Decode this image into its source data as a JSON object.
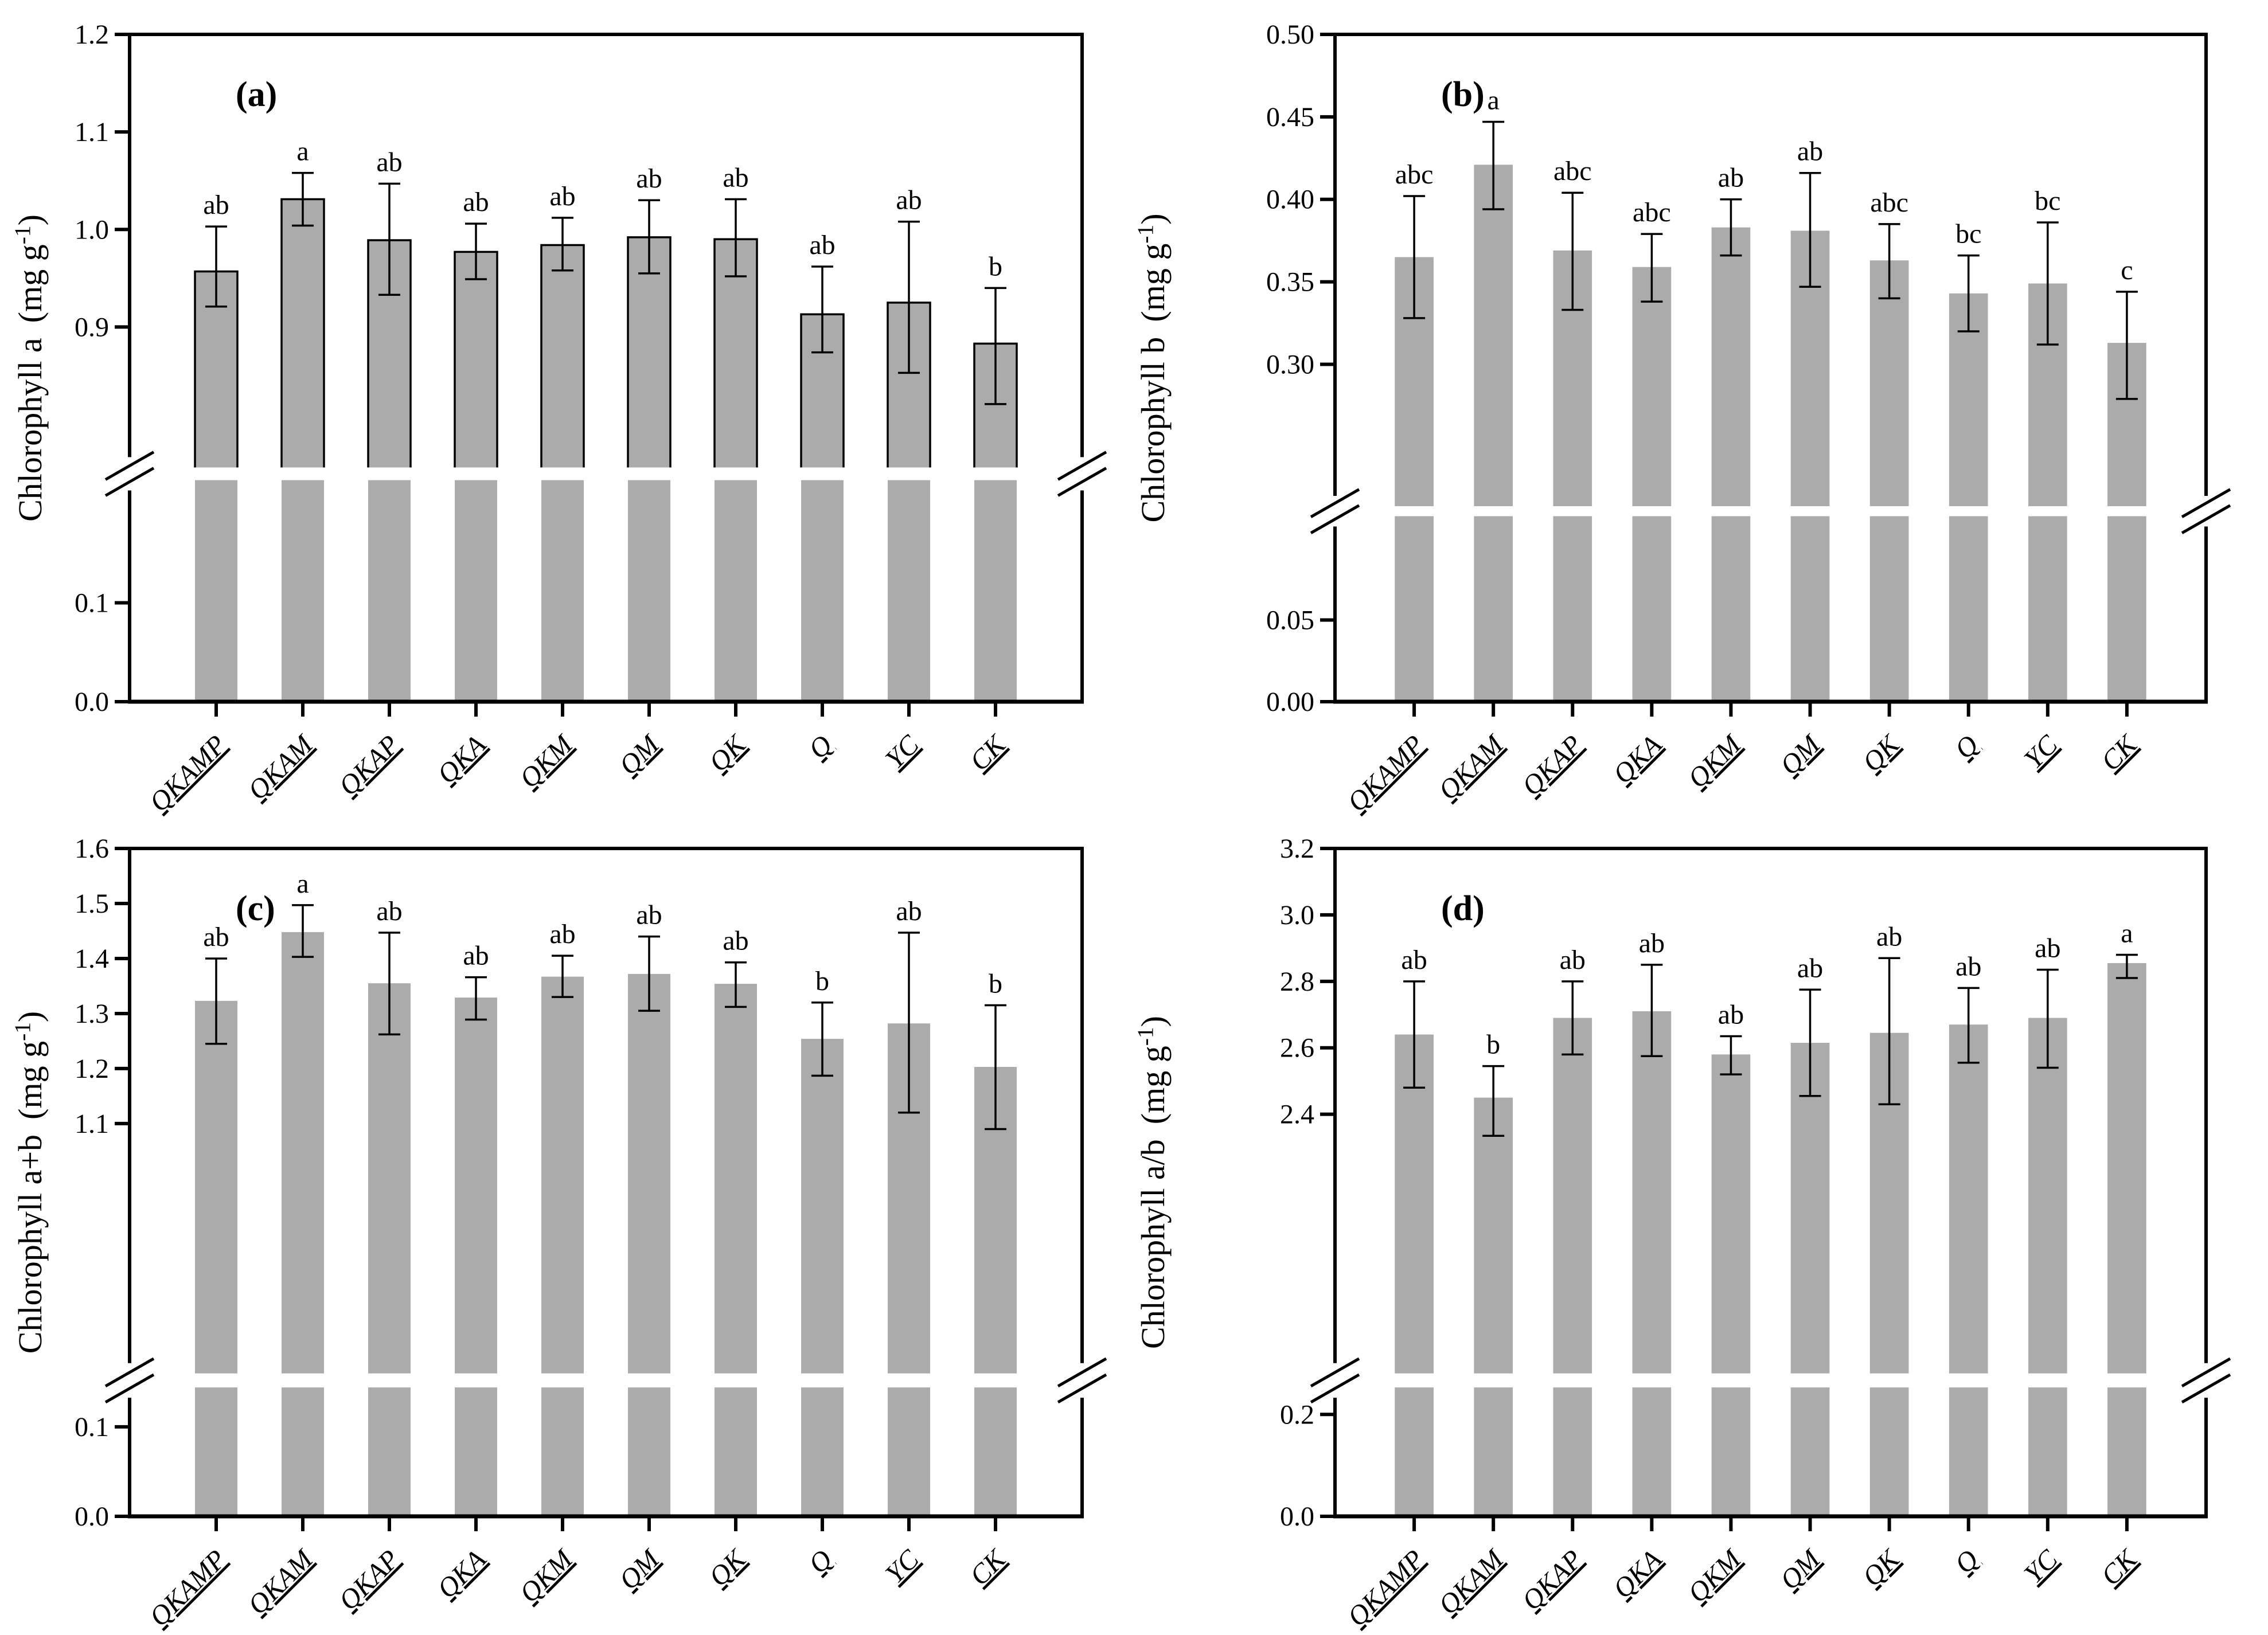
{
  "figure": {
    "background": "#ffffff",
    "axis_color": "#000000",
    "bar_fill": "#ABABAB",
    "error_bar_color": "#000000",
    "treatments": [
      "QKAMP",
      "QKAM",
      "QKAP",
      "QKA",
      "QKM",
      "QM",
      "QK",
      "Q",
      "YC",
      "CK"
    ]
  },
  "chart_data": [
    {
      "type": "bar",
      "panel": "(a)",
      "ylabel_name": "Chlorophyll a",
      "ylabel_unit_open": "(mg g",
      "ylabel_unit_sup": "-1",
      "ylabel_unit_close": ")",
      "categories": [
        "QKAMP",
        "QKAM",
        "QKAP",
        "QKA",
        "QKM",
        "QM",
        "QK",
        "Q",
        "YC",
        "CK"
      ],
      "values": [
        0.957,
        1.031,
        0.989,
        0.977,
        0.984,
        0.992,
        0.99,
        0.913,
        0.925,
        0.883
      ],
      "err_low": [
        0.921,
        1.004,
        0.933,
        0.949,
        0.958,
        0.955,
        0.952,
        0.874,
        0.853,
        0.821
      ],
      "err_high": [
        1.003,
        1.058,
        1.047,
        1.006,
        1.012,
        1.03,
        1.031,
        0.962,
        1.008,
        0.94
      ],
      "sig_letters": [
        "ab",
        "a",
        "ab",
        "ab",
        "ab",
        "ab",
        "ab",
        "ab",
        "ab",
        "b"
      ],
      "bar_outlined": true,
      "axis": {
        "broken": true,
        "upper_tick_labels": [
          "1.2",
          "1.1",
          "1.0",
          "0.9"
        ],
        "upper_tick_values": [
          1.2,
          1.1,
          1.0,
          0.9
        ],
        "upper_range": [
          0.756,
          1.2
        ],
        "lower_tick_labels": [
          "0.1",
          "0.0"
        ],
        "lower_tick_values": [
          0.1,
          0.0
        ],
        "lower_range": [
          0,
          0.224
        ],
        "upper_frac": 0.649,
        "gap_frac": 0.019
      }
    },
    {
      "type": "bar",
      "panel": "(b)",
      "ylabel_name": "Chlorophyll b",
      "ylabel_unit_open": "(mg g",
      "ylabel_unit_sup": "-1",
      "ylabel_unit_close": ")",
      "categories": [
        "QKAMP",
        "QKAM",
        "QKAP",
        "QKA",
        "QKM",
        "QM",
        "QK",
        "Q",
        "YC",
        "CK"
      ],
      "values": [
        0.365,
        0.421,
        0.369,
        0.359,
        0.383,
        0.381,
        0.363,
        0.343,
        0.349,
        0.313
      ],
      "err_low": [
        0.328,
        0.394,
        0.333,
        0.338,
        0.366,
        0.347,
        0.34,
        0.32,
        0.312,
        0.279
      ],
      "err_high": [
        0.402,
        0.447,
        0.404,
        0.379,
        0.4,
        0.416,
        0.385,
        0.366,
        0.386,
        0.344
      ],
      "sig_letters": [
        "abc",
        "a",
        "abc",
        "abc",
        "ab",
        "ab",
        "abc",
        "bc",
        "bc",
        "c"
      ],
      "bar_outlined": false,
      "axis": {
        "broken": true,
        "upper_tick_labels": [
          "0.50",
          "0.45",
          "0.40",
          "0.35",
          "0.30"
        ],
        "upper_tick_values": [
          0.5,
          0.45,
          0.4,
          0.35,
          0.3
        ],
        "upper_range": [
          0.214,
          0.5
        ],
        "lower_tick_labels": [
          "0.05",
          "0.00"
        ],
        "lower_tick_values": [
          0.05,
          0.0
        ],
        "lower_range": [
          0,
          0.1135
        ],
        "upper_frac": 0.707,
        "gap_frac": 0.015
      }
    },
    {
      "type": "bar",
      "panel": "(c)",
      "ylabel_name": "Chlorophyll a+b",
      "ylabel_unit_open": "(mg g",
      "ylabel_unit_sup": "-1",
      "ylabel_unit_close": ")",
      "categories": [
        "QKAMP",
        "QKAM",
        "QKAP",
        "QKA",
        "QKM",
        "QM",
        "QK",
        "Q",
        "YC",
        "CK"
      ],
      "values": [
        1.323,
        1.448,
        1.355,
        1.329,
        1.367,
        1.372,
        1.354,
        1.254,
        1.282,
        1.203
      ],
      "err_low": [
        1.245,
        1.403,
        1.262,
        1.289,
        1.33,
        1.305,
        1.312,
        1.187,
        1.12,
        1.09
      ],
      "err_high": [
        1.4,
        1.497,
        1.447,
        1.366,
        1.405,
        1.44,
        1.393,
        1.32,
        1.447,
        1.315
      ],
      "sig_letters": [
        "ab",
        "a",
        "ab",
        "ab",
        "ab",
        "ab",
        "ab",
        "b",
        "ab",
        "b"
      ],
      "bar_outlined": false,
      "axis": {
        "broken": true,
        "upper_tick_labels": [
          "1.6",
          "1.5",
          "1.4",
          "1.3",
          "1.2",
          "1.1"
        ],
        "upper_tick_values": [
          1.6,
          1.5,
          1.4,
          1.3,
          1.2,
          1.1
        ],
        "upper_range": [
          0.646,
          1.6
        ],
        "lower_tick_labels": [
          "0.1",
          "0.0"
        ],
        "lower_tick_values": [
          0.1,
          0.0
        ],
        "lower_range": [
          0,
          0.144
        ],
        "upper_frac": 0.786,
        "gap_frac": 0.021
      }
    },
    {
      "type": "bar",
      "panel": "(d)",
      "ylabel_name": "Chlorophyll a/b",
      "ylabel_unit_open": "(mg g",
      "ylabel_unit_sup": "-1",
      "ylabel_unit_close": ")",
      "categories": [
        "QKAMP",
        "QKAM",
        "QKAP",
        "QKA",
        "QKM",
        "QM",
        "QK",
        "Q",
        "YC",
        "CK"
      ],
      "values": [
        2.64,
        2.45,
        2.69,
        2.71,
        2.58,
        2.615,
        2.645,
        2.67,
        2.69,
        2.855
      ],
      "err_low": [
        2.48,
        2.335,
        2.58,
        2.575,
        2.52,
        2.455,
        2.43,
        2.555,
        2.54,
        2.81
      ],
      "err_high": [
        2.8,
        2.545,
        2.8,
        2.85,
        2.635,
        2.775,
        2.87,
        2.78,
        2.835,
        2.88
      ],
      "sig_letters": [
        "ab",
        "b",
        "ab",
        "ab",
        "ab",
        "ab",
        "ab",
        "ab",
        "ab",
        "a"
      ],
      "bar_outlined": false,
      "axis": {
        "broken": true,
        "upper_tick_labels": [
          "3.2",
          "3.0",
          "2.8",
          "2.6",
          "2.4"
        ],
        "upper_tick_values": [
          3.2,
          3.0,
          2.8,
          2.6,
          2.4
        ],
        "upper_range": [
          1.62,
          3.2
        ],
        "lower_tick_labels": [
          "0.2",
          "0.0"
        ],
        "lower_tick_values": [
          0.2,
          0.0
        ],
        "lower_range": [
          0,
          0.253
        ],
        "upper_frac": 0.786,
        "gap_frac": 0.021
      }
    }
  ]
}
